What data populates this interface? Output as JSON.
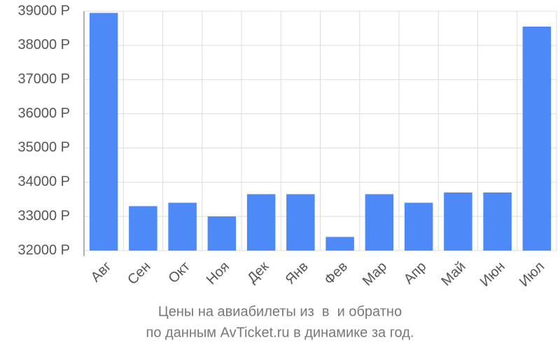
{
  "chart_data": {
    "type": "bar",
    "title": "Цены на авиабилеты из  в  и обратно",
    "subtitle": "по данным AvTicket.ru в динамике за год.",
    "categories": [
      "Авг",
      "Сен",
      "Окт",
      "Ноя",
      "Дек",
      "Янв",
      "Фев",
      "Мар",
      "Апр",
      "Май",
      "Июн",
      "Июл"
    ],
    "values": [
      38950,
      33300,
      33400,
      33000,
      33650,
      33650,
      32400,
      33650,
      33400,
      33700,
      33700,
      38550
    ],
    "color": "#4d8af8",
    "ylim": [
      32000,
      39000
    ],
    "yticks": [
      {
        "value": 32000,
        "label": "32000 Р"
      },
      {
        "value": 33000,
        "label": "33000 Р"
      },
      {
        "value": 34000,
        "label": "34000 Р"
      },
      {
        "value": 35000,
        "label": "35000 Р"
      },
      {
        "value": 36000,
        "label": "36000 Р"
      },
      {
        "value": 37000,
        "label": "37000 Р"
      },
      {
        "value": 38000,
        "label": "38000 Р"
      },
      {
        "value": 39000,
        "label": "39000 Р"
      }
    ],
    "grid": true
  }
}
